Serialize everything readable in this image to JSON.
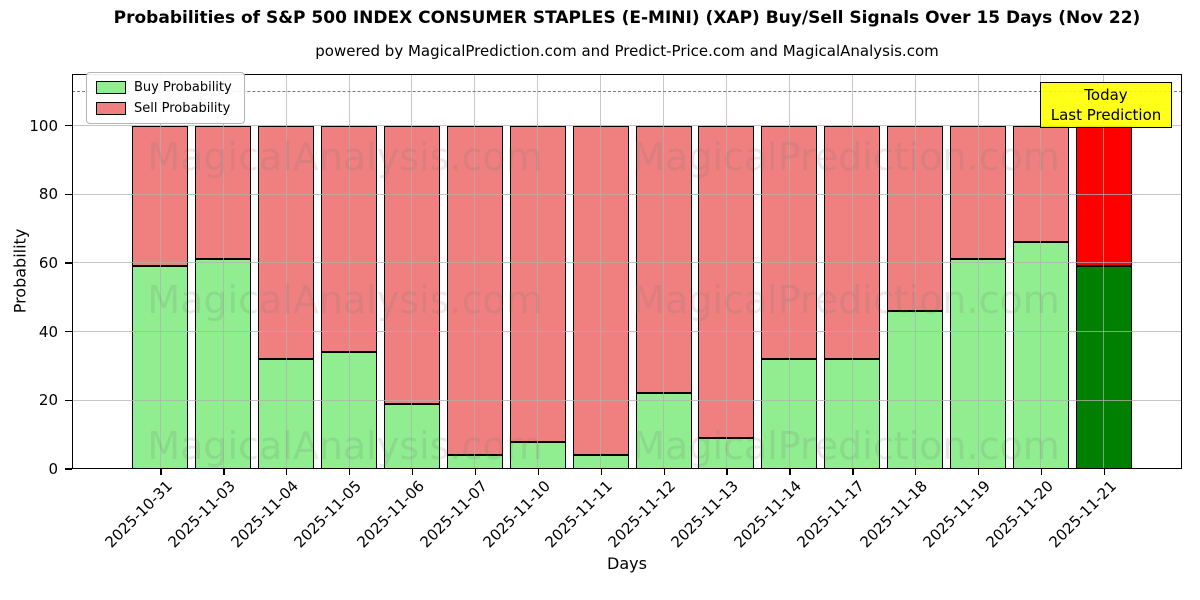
{
  "header": {
    "title": "Probabilities of S&P 500 INDEX CONSUMER STAPLES (E-MINI) (XAP) Buy/Sell Signals Over 15 Days (Nov 22)",
    "subtitle": "powered by MagicalPrediction.com and Predict-Price.com and MagicalAnalysis.com"
  },
  "legend": {
    "position": "top-left",
    "items": [
      {
        "label": "Buy Probability",
        "color": "#90ee90"
      },
      {
        "label": "Sell Probability",
        "color": "#f08080"
      }
    ]
  },
  "annotation_box": {
    "line1": "Today",
    "line2": "Last Prediction",
    "bg_color": "#ffff00"
  },
  "watermarks": [
    "MagicalAnalysis.com",
    "MagicalPrediction.com"
  ],
  "chart_data": {
    "type": "bar",
    "stacked": true,
    "title": "Probabilities of S&P 500 INDEX CONSUMER STAPLES (E-MINI) (XAP) Buy/Sell Signals Over 15 Days (Nov 22)",
    "xlabel": "Days",
    "ylabel": "Probability",
    "ylim": [
      0,
      115
    ],
    "yticks": [
      0,
      20,
      40,
      60,
      80,
      100
    ],
    "grid": true,
    "dashed_reference_line_y": 110,
    "categories": [
      "2025-10-31",
      "2025-11-03",
      "2025-11-04",
      "2025-11-05",
      "2025-11-06",
      "2025-11-07",
      "2025-11-10",
      "2025-11-11",
      "2025-11-12",
      "2025-11-13",
      "2025-11-14",
      "2025-11-17",
      "2025-11-18",
      "2025-11-19",
      "2025-11-20",
      "2025-11-21"
    ],
    "series": [
      {
        "name": "Buy Probability",
        "color": "#90ee90",
        "last_bar_color": "#008000",
        "values": [
          59,
          61,
          32,
          34,
          19,
          4,
          8,
          4,
          22,
          9,
          32,
          32,
          46,
          61,
          66,
          59
        ]
      },
      {
        "name": "Sell Probability",
        "color": "#f08080",
        "last_bar_color": "#ff0000",
        "values": [
          41,
          39,
          68,
          66,
          81,
          96,
          92,
          96,
          78,
          91,
          68,
          68,
          54,
          39,
          34,
          41
        ]
      }
    ]
  }
}
